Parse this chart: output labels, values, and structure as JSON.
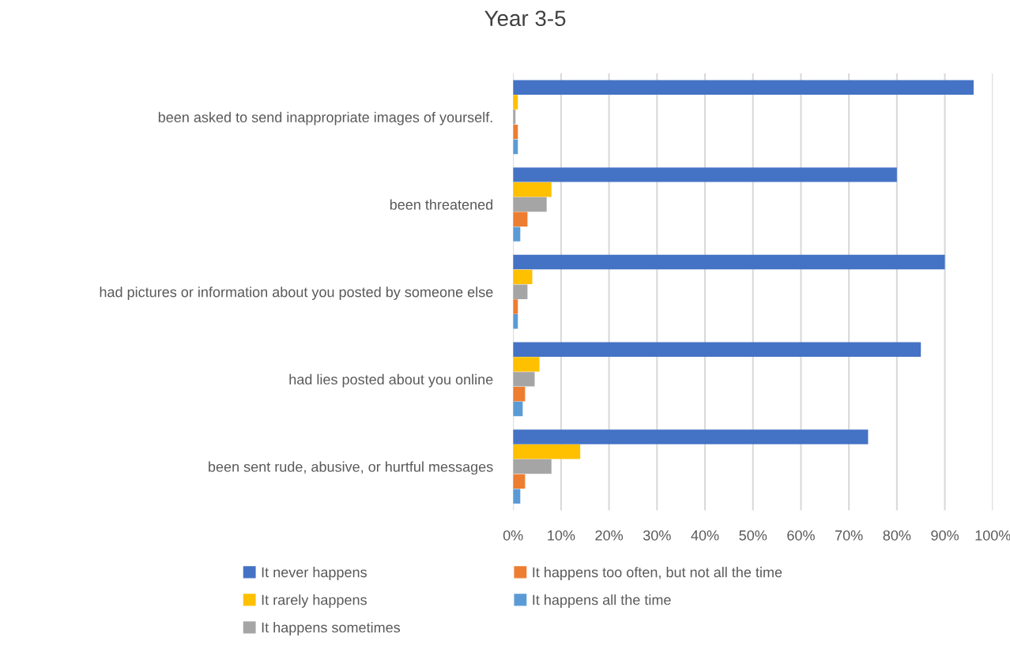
{
  "chart_data": {
    "type": "bar",
    "orientation": "horizontal",
    "title": "Year 3-5",
    "categories": [
      "been asked to send inappropriate images of yourself.",
      "been threatened",
      "had pictures or information about you posted by someone else",
      "had lies posted about you online",
      "been sent rude, abusive, or hurtful messages"
    ],
    "series": [
      {
        "name": "It never happens",
        "color": "#4472c4",
        "values": [
          96,
          80,
          90,
          85,
          74
        ]
      },
      {
        "name": "It rarely happens",
        "color": "#ffc000",
        "values": [
          1,
          8,
          4,
          5.5,
          14
        ]
      },
      {
        "name": "It happens sometimes",
        "color": "#a5a5a5",
        "values": [
          0.5,
          7,
          3,
          4.5,
          8
        ]
      },
      {
        "name": "It happens too often, but not all the time",
        "color": "#ed7d31",
        "values": [
          1,
          3,
          1,
          2.5,
          2.5
        ]
      },
      {
        "name": "It happens all the time",
        "color": "#5b9bd5",
        "values": [
          1,
          1.5,
          1,
          2,
          1.5
        ]
      }
    ],
    "xlim": [
      0,
      100
    ],
    "xticks": [
      {
        "value": 0,
        "label": "0%"
      },
      {
        "value": 10,
        "label": "10%"
      },
      {
        "value": 20,
        "label": "20%"
      },
      {
        "value": 30,
        "label": "30%"
      },
      {
        "value": 40,
        "label": "40%"
      },
      {
        "value": 50,
        "label": "50%"
      },
      {
        "value": 60,
        "label": "60%"
      },
      {
        "value": 70,
        "label": "70%"
      },
      {
        "value": 80,
        "label": "80%"
      },
      {
        "value": 90,
        "label": "90%"
      },
      {
        "value": 100,
        "label": "100%"
      }
    ],
    "grid": "x",
    "legend": "bottom"
  }
}
